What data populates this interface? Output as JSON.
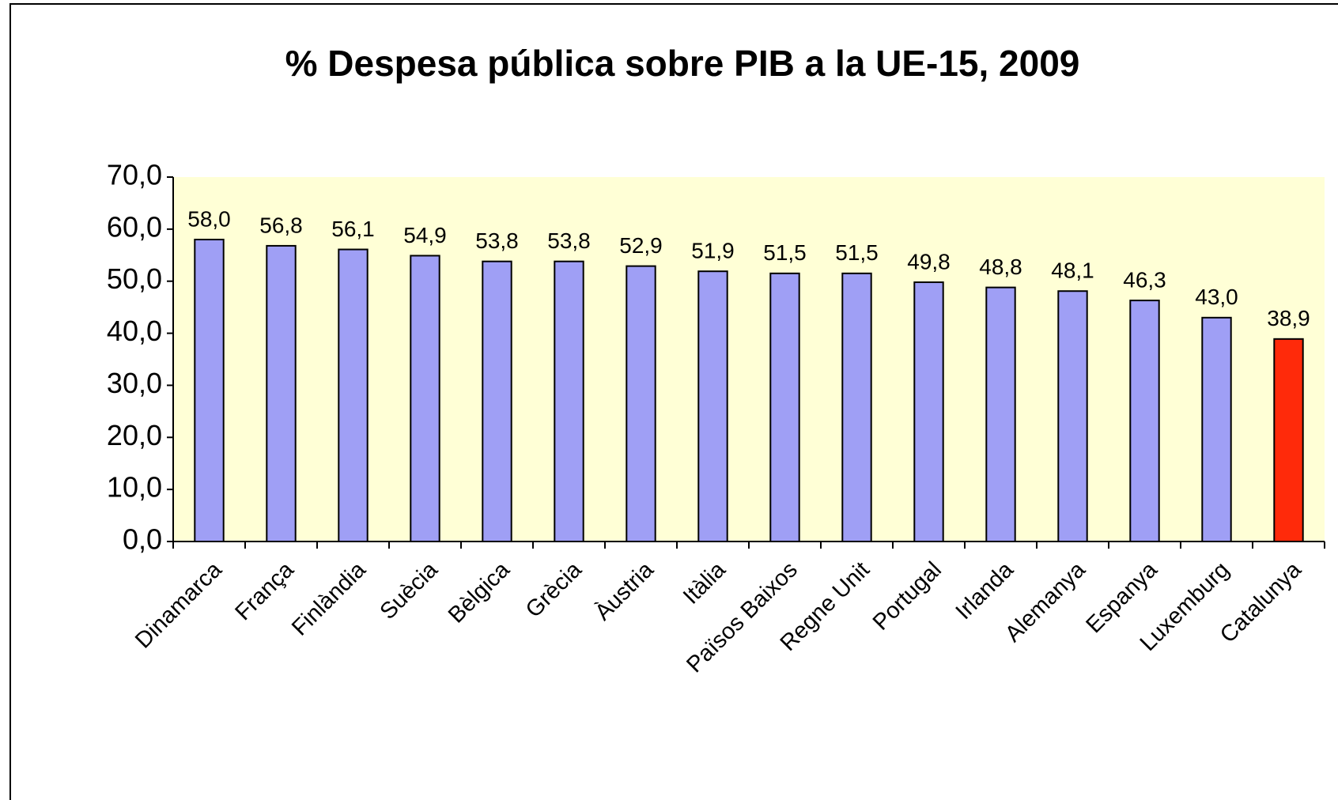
{
  "chart_data": {
    "type": "bar",
    "title": "% Despesa pública sobre PIB a la UE-15, 2009",
    "categories": [
      "Dinamarca",
      "França",
      "Finlàndia",
      "Suècia",
      "Bèlgica",
      "Grècia",
      "Àustria",
      "Itàlia",
      "Països Baixos",
      "Regne Unit",
      "Portugal",
      "Irlanda",
      "Alemanya",
      "Espanya",
      "Luxemburg",
      "Catalunya"
    ],
    "values": [
      58.0,
      56.8,
      56.1,
      54.9,
      53.8,
      53.8,
      52.9,
      51.9,
      51.5,
      51.5,
      49.8,
      48.8,
      48.1,
      46.3,
      43.0,
      38.9
    ],
    "value_labels": [
      "58,0",
      "56,8",
      "56,1",
      "54,9",
      "53,8",
      "53,8",
      "52,9",
      "51,9",
      "51,5",
      "51,5",
      "49,8",
      "48,8",
      "48,1",
      "46,3",
      "43,0",
      "38,9"
    ],
    "colors": [
      "#9f9ff5",
      "#9f9ff5",
      "#9f9ff5",
      "#9f9ff5",
      "#9f9ff5",
      "#9f9ff5",
      "#9f9ff5",
      "#9f9ff5",
      "#9f9ff5",
      "#9f9ff5",
      "#9f9ff5",
      "#9f9ff5",
      "#9f9ff5",
      "#9f9ff5",
      "#9f9ff5",
      "#ff2a0a"
    ],
    "ylim": [
      0,
      70
    ],
    "yticks": [
      {
        "value": 0,
        "label": "0,0"
      },
      {
        "value": 10,
        "label": "10,0"
      },
      {
        "value": 20,
        "label": "20,0"
      },
      {
        "value": 30,
        "label": "30,0"
      },
      {
        "value": 40,
        "label": "40,0"
      },
      {
        "value": 50,
        "label": "50,0"
      },
      {
        "value": 60,
        "label": "60,0"
      },
      {
        "value": 70,
        "label": "70,0"
      }
    ],
    "grid": false
  }
}
